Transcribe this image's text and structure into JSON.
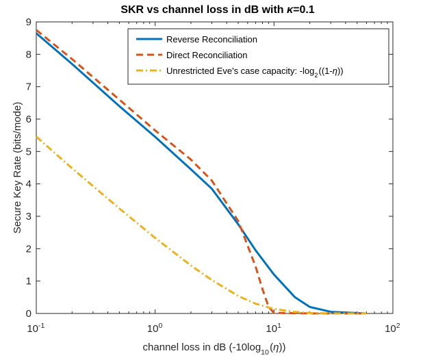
{
  "chart_data": {
    "type": "line",
    "title": "SKR vs channel loss in dB with κ=0.1",
    "xlabel": "channel loss in dB (-10log10(η))",
    "ylabel": "Secure Key Rate (bits/mode)",
    "xscale": "log",
    "xlim": [
      0.1,
      100
    ],
    "ylim": [
      0,
      9
    ],
    "grid": false,
    "legend_location": "top-right",
    "x_tick_labels": [
      "10^-1",
      "10^0",
      "10^1",
      "10^2"
    ],
    "y_tick_labels": [
      "0",
      "1",
      "2",
      "3",
      "4",
      "5",
      "6",
      "7",
      "8",
      "9"
    ],
    "series": [
      {
        "name": "Reverse Reconciliation",
        "color": "#0072BD",
        "line_style": "solid",
        "points": [
          [
            0.1,
            8.65
          ],
          [
            0.2,
            7.7
          ],
          [
            0.5,
            6.4
          ],
          [
            1,
            5.45
          ],
          [
            2,
            4.45
          ],
          [
            3,
            3.85
          ],
          [
            5,
            2.75
          ],
          [
            7,
            1.95
          ],
          [
            10,
            1.2
          ],
          [
            15,
            0.5
          ],
          [
            20,
            0.2
          ],
          [
            30,
            0.05
          ],
          [
            60,
            0.0
          ]
        ]
      },
      {
        "name": "Direct Reconciliation",
        "color": "#D95319",
        "line_style": "dashed",
        "points": [
          [
            0.1,
            8.75
          ],
          [
            0.2,
            7.85
          ],
          [
            0.5,
            6.6
          ],
          [
            1,
            5.65
          ],
          [
            2,
            4.75
          ],
          [
            3,
            4.1
          ],
          [
            5,
            2.85
          ],
          [
            7,
            1.45
          ],
          [
            8,
            0.75
          ],
          [
            9,
            0.2
          ],
          [
            10,
            0.02
          ],
          [
            20,
            0.0
          ],
          [
            60,
            0.0
          ]
        ]
      },
      {
        "name": "Unrestricted Eve's case capacity: -log2((1-η))",
        "color": "#EDB120",
        "line_style": "dash-dot",
        "points": [
          [
            0.1,
            5.46
          ],
          [
            0.2,
            4.48
          ],
          [
            0.5,
            3.24
          ],
          [
            1,
            2.33
          ],
          [
            2,
            1.48
          ],
          [
            3,
            1.03
          ],
          [
            5,
            0.54
          ],
          [
            7,
            0.3
          ],
          [
            10,
            0.14
          ],
          [
            15,
            0.047
          ],
          [
            20,
            0.014
          ],
          [
            30,
            0.0014
          ],
          [
            60,
            0.0
          ]
        ]
      }
    ]
  }
}
